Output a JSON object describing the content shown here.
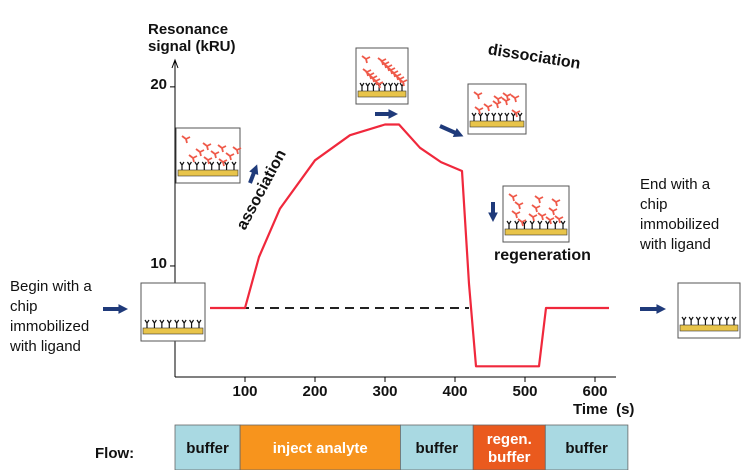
{
  "chart_data": {
    "type": "line",
    "y_label": [
      "Resonance",
      "signal (kRU)"
    ],
    "x_label": "Time  (s)",
    "xlim": [
      0,
      630
    ],
    "ylim": [
      3.8,
      21.5
    ],
    "xticks": [
      100,
      200,
      300,
      400,
      500,
      600
    ],
    "yticks": [
      10,
      20
    ],
    "color": "#f0283c",
    "x": [
      50,
      100,
      120,
      150,
      200,
      250,
      300,
      320,
      350,
      380,
      410,
      420,
      430,
      520,
      530,
      620
    ],
    "values": [
      7.65,
      7.65,
      10.5,
      13.2,
      15.9,
      17.3,
      17.9,
      17.9,
      16.6,
      15.8,
      15.3,
      9,
      4.4,
      4.4,
      7.65,
      7.65
    ],
    "baseline": 7.65,
    "annotations": [
      {
        "lines": [
          "association"
        ]
      },
      {
        "lines": [
          "dissociation"
        ]
      },
      {
        "lines": [
          "regeneration"
        ]
      },
      {
        "lines": [
          "Begin with a",
          "chip",
          "immobilized",
          "with ligand"
        ]
      },
      {
        "lines": [
          "End with a",
          "chip",
          "immobilized",
          "with ligand"
        ]
      }
    ],
    "flow": {
      "label": "Flow:",
      "segments": [
        {
          "lines": [
            "buffer"
          ],
          "start": 0,
          "end": 93,
          "color": "#a9d9e2"
        },
        {
          "lines": [
            "inject analyte"
          ],
          "start": 93,
          "end": 322,
          "color": "#f7941d"
        },
        {
          "lines": [
            "buffer"
          ],
          "start": 322,
          "end": 426,
          "color": "#a9d9e2"
        },
        {
          "lines": [
            "regen.",
            "buffer"
          ],
          "start": 426,
          "end": 529,
          "color": "#ea5a1e"
        },
        {
          "lines": [
            "buffer"
          ],
          "start": 529,
          "end": 647,
          "color": "#a9d9e2"
        }
      ]
    }
  }
}
